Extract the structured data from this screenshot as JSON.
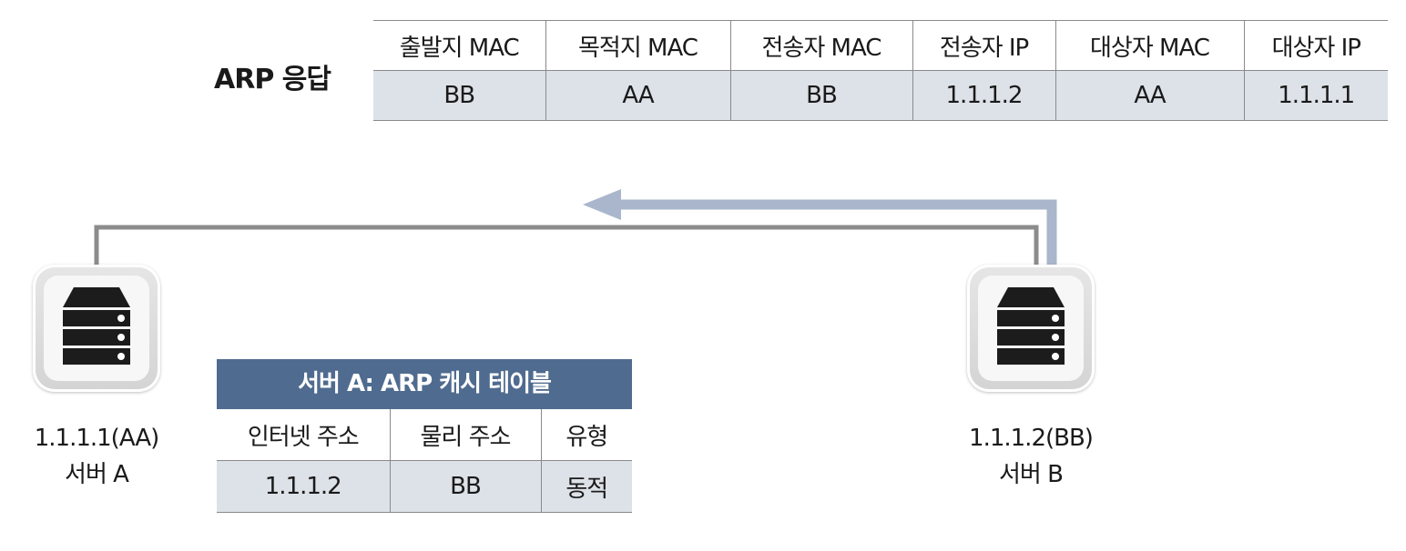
{
  "arp_reply": {
    "title": "ARP 응답",
    "headers": [
      "출발지 MAC",
      "목적지 MAC",
      "전송자 MAC",
      "전송자 IP",
      "대상자 MAC",
      "대상자 IP"
    ],
    "values": [
      "BB",
      "AA",
      "BB",
      "1.1.1.2",
      "AA",
      "1.1.1.1"
    ]
  },
  "server_a": {
    "address": "1.1.1.1(AA)",
    "name": "서버 A"
  },
  "server_b": {
    "address": "1.1.1.2(BB)",
    "name": "서버 B"
  },
  "cache_table": {
    "title": "서버 A: ARP 캐시 테이블",
    "headers": [
      "인터넷 주소",
      "물리 주소",
      "유형"
    ],
    "rows": [
      [
        "1.1.1.2",
        "BB",
        "동적"
      ]
    ]
  },
  "icons": {
    "server": "server-icon",
    "arrow": "arrow-left-icon"
  },
  "colors": {
    "cable": "#8c8c8c",
    "arrow": "#a9b6cb",
    "table_fill": "#dde1e8",
    "cache_header": "#4f6b8f"
  }
}
